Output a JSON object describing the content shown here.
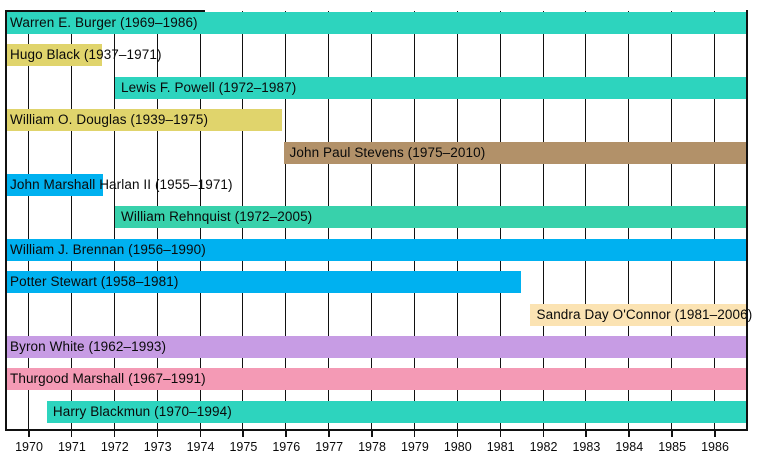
{
  "chart_data": {
    "type": "bar",
    "variant": "timeline-gantt",
    "title": "",
    "xlabel": "",
    "ylabel": "",
    "grid": true,
    "background_color": "#ffffff",
    "grid_color": "#111111",
    "x_axis": {
      "tick_labels": [
        "1970",
        "1971",
        "1972",
        "1973",
        "1974",
        "1975",
        "1976",
        "1977",
        "1978",
        "1979",
        "1980",
        "1981",
        "1982",
        "1983",
        "1984",
        "1985",
        "1986"
      ],
      "left_edge_year": 1969.46,
      "right_edge_year": 1986.77
    },
    "bars": [
      {
        "label": "Warren E. Burger (1969–1986)",
        "justice": "Warren E. Burger",
        "term": "1969–1986",
        "start": 1969.45,
        "end": 1986.78,
        "color": "#2DD4BE"
      },
      {
        "label": "Hugo Black (1937–1971)",
        "justice": "Hugo Black",
        "term": "1937–1971",
        "start": 1937.0,
        "end": 1971.73,
        "color": "#E0D46C"
      },
      {
        "label": "Lewis F. Powell (1972–1987)",
        "justice": "Lewis F. Powell",
        "term": "1972–1987",
        "start": 1972.03,
        "end": 1987.5,
        "color": "#2DD4BE"
      },
      {
        "label": "William O. Douglas (1939–1975)",
        "justice": "William O. Douglas",
        "term": "1939–1975",
        "start": 1939.0,
        "end": 1975.92,
        "color": "#E0D46C"
      },
      {
        "label": "John Paul Stevens (1975–2010)",
        "justice": "John Paul Stevens",
        "term": "1975–2010",
        "start": 1975.96,
        "end": 2010.0,
        "color": "#B29169"
      },
      {
        "label": "John Marshall Harlan II (1955–1971)",
        "justice": "John Marshall Harlan II",
        "term": "1955–1971",
        "start": 1955.0,
        "end": 1971.75,
        "color": "#00B1F0"
      },
      {
        "label": "William Rehnquist (1972–2005)",
        "justice": "William Rehnquist",
        "term": "1972–2005",
        "start": 1972.03,
        "end": 2005.0,
        "color": "#38D1AB"
      },
      {
        "label": "William J. Brennan (1956–1990)",
        "justice": "William J. Brennan",
        "term": "1956–1990",
        "start": 1956.0,
        "end": 1990.0,
        "color": "#00B1F0"
      },
      {
        "label": "Potter Stewart (1958–1981)",
        "justice": "Potter Stewart",
        "term": "1958–1981",
        "start": 1958.0,
        "end": 1981.5,
        "color": "#00B1F0"
      },
      {
        "label": "Sandra Day O'Connor (1981–2006)",
        "justice": "Sandra Day O'Connor",
        "term": "1981–2006",
        "start": 1981.72,
        "end": 2006.0,
        "color": "#FBE3B3"
      },
      {
        "label": "Byron White (1962–1993)",
        "justice": "Byron White",
        "term": "1962–1993",
        "start": 1962.0,
        "end": 1993.0,
        "color": "#C79CE4"
      },
      {
        "label": "Thurgood Marshall (1967–1991)",
        "justice": "Thurgood Marshall",
        "term": "1967–1991",
        "start": 1967.0,
        "end": 1991.0,
        "color": "#F49AB5"
      },
      {
        "label": "Harry Blackmun (1970–1994)",
        "justice": "Harry Blackmun",
        "term": "1970–1994",
        "start": 1970.44,
        "end": 1994.0,
        "color": "#2DD4BE"
      }
    ]
  }
}
